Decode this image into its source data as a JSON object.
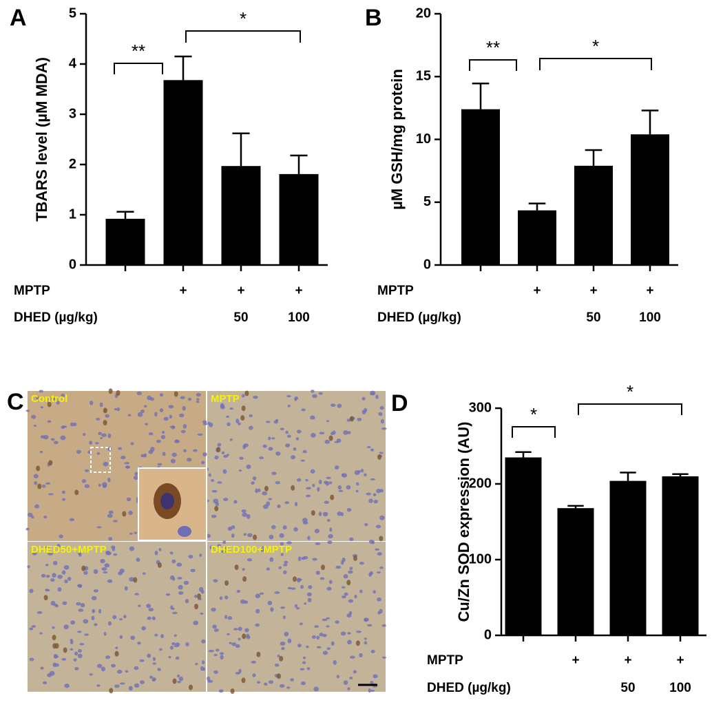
{
  "chart_data": [
    {
      "type": "bar",
      "panel_label": "A",
      "ylabel": "TBARS level (µM MDA)",
      "color": "#000000",
      "values": [
        0.92,
        3.68,
        1.97,
        1.81
      ],
      "errors": [
        0.14,
        0.47,
        0.65,
        0.37
      ],
      "ylim": [
        0,
        5
      ],
      "yticks": [
        0,
        1,
        2,
        3,
        4,
        5
      ],
      "treatment_rows": [
        {
          "label": "MPTP",
          "values": [
            null,
            "+",
            "+",
            "+"
          ]
        },
        {
          "label": "DHED (µg/kg)",
          "values": [
            null,
            null,
            50,
            100
          ]
        }
      ],
      "significance": [
        {
          "from": 0,
          "to": 1,
          "label": "**"
        },
        {
          "from": 1,
          "to": 3,
          "label": "*"
        }
      ]
    },
    {
      "type": "bar",
      "panel_label": "B",
      "ylabel": "µM GSH/mg protein",
      "color": "#000000",
      "values": [
        12.4,
        4.35,
        7.9,
        10.4
      ],
      "errors": [
        2.05,
        0.55,
        1.25,
        1.9
      ],
      "ylim": [
        0,
        20
      ],
      "yticks": [
        0,
        5,
        10,
        15,
        20
      ],
      "treatment_rows": [
        {
          "label": "MPTP",
          "values": [
            null,
            "+",
            "+",
            "+"
          ]
        },
        {
          "label": "DHED (µg/kg)",
          "values": [
            null,
            null,
            50,
            100
          ]
        }
      ],
      "significance": [
        {
          "from": 0,
          "to": 1,
          "label": "**"
        },
        {
          "from": 1,
          "to": 3,
          "label": "*"
        }
      ]
    },
    {
      "type": "bar",
      "panel_label": "D",
      "ylabel": "Cu/Zn SOD expression (AU)",
      "color": "#000000",
      "values": [
        235,
        168,
        204,
        210
      ],
      "errors": [
        7,
        3,
        11,
        3
      ],
      "ylim": [
        0,
        300
      ],
      "yticks": [
        0,
        100,
        200,
        300
      ],
      "treatment_rows": [
        {
          "label": "MPTP",
          "values": [
            null,
            "+",
            "+",
            "+"
          ]
        },
        {
          "label": "DHED (µg/kg)",
          "values": [
            null,
            null,
            50,
            100
          ]
        }
      ],
      "significance": [
        {
          "from": 0,
          "to": 1,
          "label": "*"
        },
        {
          "from": 1,
          "to": 3,
          "label": "*"
        }
      ]
    }
  ],
  "micrograph": {
    "panel_label": "C",
    "labels": [
      "Control",
      "MPTP",
      "DHED50+MPTP",
      "DHED100+MPTP"
    ]
  }
}
